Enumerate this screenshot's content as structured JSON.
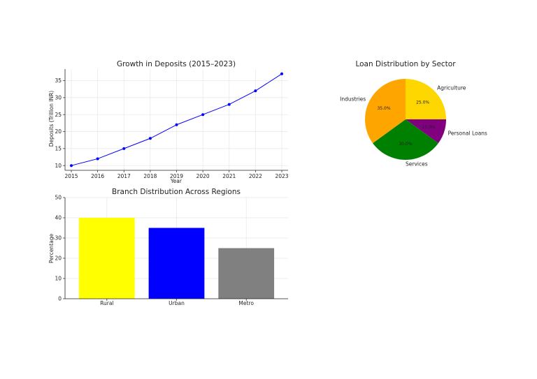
{
  "chart_data": [
    {
      "type": "line",
      "title": "Growth in Deposits (2015–2023)",
      "xlabel": "Year",
      "ylabel": "Deposits (Trillion INR)",
      "x": [
        2015,
        2016,
        2017,
        2018,
        2019,
        2020,
        2021,
        2022,
        2023
      ],
      "series": [
        {
          "values": [
            10,
            12,
            15,
            18,
            22,
            25,
            28,
            32,
            37
          ],
          "color": "#0000ff"
        }
      ],
      "xticks": [
        "2015",
        "2016",
        "2017",
        "2018",
        "2019",
        "2020",
        "2021",
        "2022",
        "2023"
      ],
      "yticks": [
        "10",
        "15",
        "20",
        "25",
        "30",
        "35"
      ],
      "ylim": [
        8.6,
        38.4
      ],
      "grid": true
    },
    {
      "type": "pie",
      "title": "Loan Distribution by Sector",
      "labels": [
        "Agriculture",
        "Personal Loans",
        "Services",
        "Industries"
      ],
      "values": [
        25.0,
        10.0,
        30.0,
        35.0
      ],
      "percent_labels": [
        "25.0%",
        "10.0%",
        "30.0%",
        "35.0%"
      ],
      "colors": [
        "#ffd700",
        "#800080",
        "#008000",
        "#ffa500"
      ],
      "start_angle_deg": 90
    },
    {
      "type": "bar",
      "title": "Branch Distribution Across Regions",
      "categories": [
        "Rural",
        "Urban",
        "Metro"
      ],
      "values": [
        40,
        35,
        25
      ],
      "colors": [
        "#ffff00",
        "#0000ff",
        "#808080"
      ],
      "ylabel": "Percentage",
      "xlabel": "",
      "yticks": [
        "0",
        "10",
        "20",
        "30",
        "40",
        "50"
      ],
      "ylim": [
        0,
        50
      ],
      "grid": true
    }
  ]
}
